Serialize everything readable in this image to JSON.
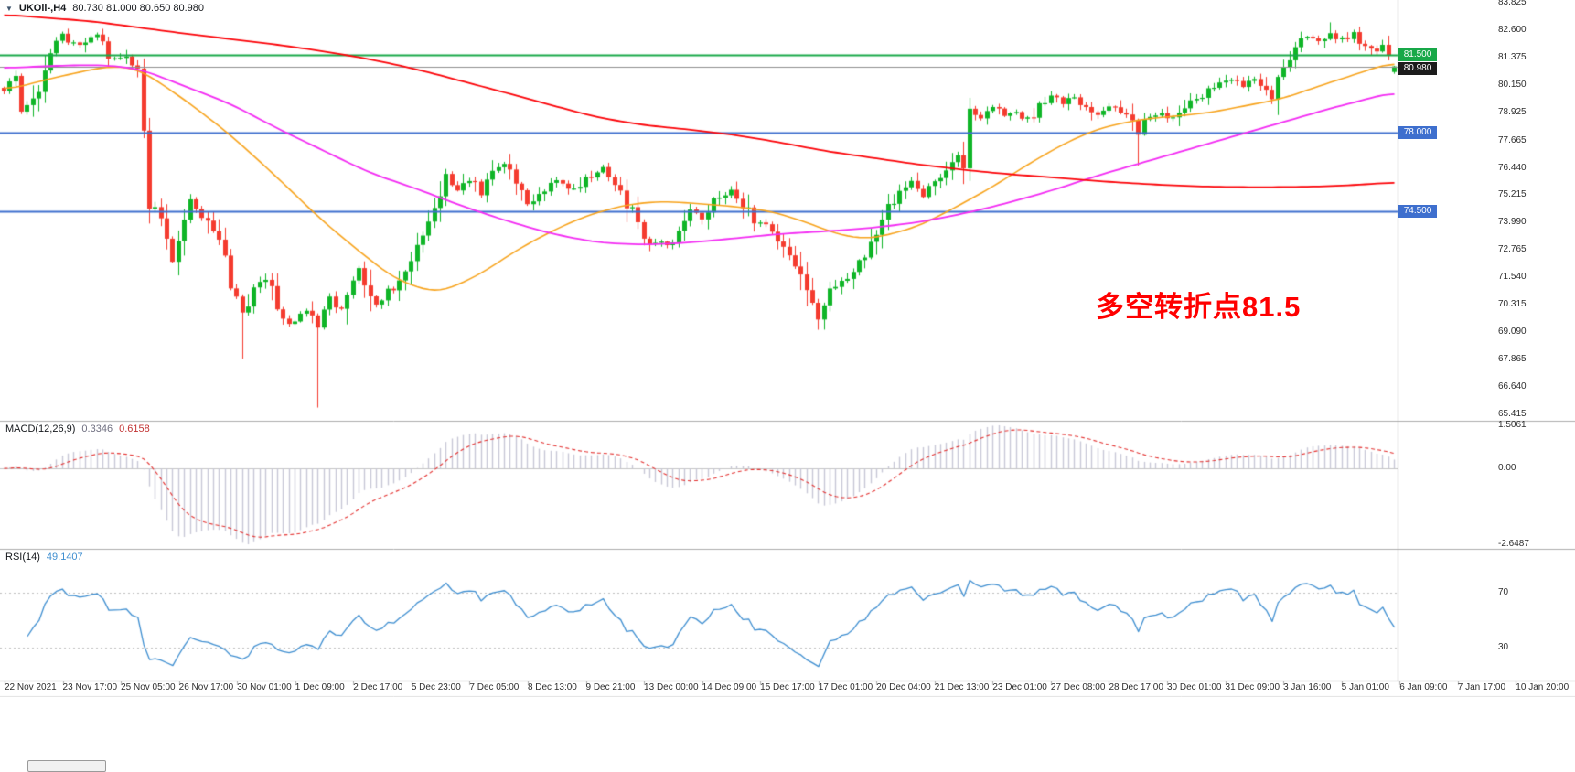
{
  "header": {
    "expander_icon": "▼",
    "symbol_period": "UKOil-,H4",
    "ohlc": "80.730 81.000 80.650 80.980"
  },
  "annotation": {
    "text": "多空转折点81.5",
    "color": "#FF0000"
  },
  "price_axis": {
    "ticks": [
      "83.825",
      "82.600",
      "81.375",
      "80.150",
      "78.925",
      "77.665",
      "76.440",
      "75.215",
      "73.990",
      "72.765",
      "71.540",
      "70.315",
      "69.090",
      "67.865",
      "66.640",
      "65.415"
    ]
  },
  "levels": [
    {
      "name": "resistance-81500",
      "price": 81.5,
      "label": "81.500",
      "color": "#18a848",
      "width": 2
    },
    {
      "name": "bid-price",
      "price": 80.98,
      "label": "80.980",
      "color": "#8f8f8f",
      "line_color": "#8f8f8f",
      "badge_color": "#1c1c1c",
      "width": 1,
      "nudge": 2
    },
    {
      "name": "support-78000",
      "price": 78.0,
      "label": "78.000",
      "color": "#3e6fce",
      "width": 2
    },
    {
      "name": "support-74500",
      "price": 74.5,
      "label": "74.500",
      "color": "#3e6fce",
      "width": 2
    }
  ],
  "macd": {
    "label": "MACD(12,26,9)",
    "value_main": "0.3346",
    "value_signal": "0.6158",
    "axis": [
      "1.5061",
      "0.00",
      "-2.6487"
    ]
  },
  "rsi": {
    "label": "RSI(14)",
    "value": "49.1407",
    "period": 14,
    "levels": [
      70,
      30
    ],
    "axis": [
      "70",
      "30"
    ]
  },
  "time_axis": {
    "labels": [
      "22 Nov 2021",
      "23 Nov 17:00",
      "25 Nov 05:00",
      "26 Nov 17:00",
      "30 Nov 01:00",
      "1 Dec 09:00",
      "2 Dec 17:00",
      "5 Dec 23:00",
      "7 Dec 05:00",
      "8 Dec 13:00",
      "9 Dec 21:00",
      "13 Dec 00:00",
      "14 Dec 09:00",
      "15 Dec 17:00",
      "17 Dec 01:00",
      "20 Dec 04:00",
      "21 Dec 13:00",
      "23 Dec 01:00",
      "27 Dec 08:00",
      "28 Dec 17:00",
      "30 Dec 01:00",
      "31 Dec 09:00",
      "3 Jan 16:00",
      "5 Jan 01:00",
      "6 Jan 09:00",
      "7 Jan 17:00",
      "10 Jan 20:00"
    ]
  },
  "chart_data": {
    "type": "candlestick",
    "symbol": "UKOil",
    "timeframe": "H4",
    "candle_count": 240,
    "price_range": [
      65.17,
      83.95
    ],
    "horizontal_levels": [
      81.5,
      78.0,
      74.5
    ],
    "bid": 80.98,
    "close_waypoints": [
      [
        0,
        79.9
      ],
      [
        2,
        80.4
      ],
      [
        3,
        79.0
      ],
      [
        5,
        79.3
      ],
      [
        8,
        81.5
      ],
      [
        10,
        82.3
      ],
      [
        13,
        81.9
      ],
      [
        16,
        82.4
      ],
      [
        18,
        81.4
      ],
      [
        21,
        81.3
      ],
      [
        23,
        80.9
      ],
      [
        24,
        78.0
      ],
      [
        25,
        74.8
      ],
      [
        27,
        74.2
      ],
      [
        29,
        72.3
      ],
      [
        32,
        74.8
      ],
      [
        34,
        74.4
      ],
      [
        37,
        72.9
      ],
      [
        40,
        70.6
      ],
      [
        41,
        70.0
      ],
      [
        43,
        70.9
      ],
      [
        45,
        71.4
      ],
      [
        47,
        70.3
      ],
      [
        49,
        69.4
      ],
      [
        51,
        70.0
      ],
      [
        53,
        69.9
      ],
      [
        54,
        69.3
      ],
      [
        56,
        70.5
      ],
      [
        58,
        70.2
      ],
      [
        61,
        71.9
      ],
      [
        63,
        71.0
      ],
      [
        64,
        70.3
      ],
      [
        66,
        70.8
      ],
      [
        68,
        71.6
      ],
      [
        70,
        72.5
      ],
      [
        72,
        73.3
      ],
      [
        74,
        74.3
      ],
      [
        76,
        76.0
      ],
      [
        78,
        75.4
      ],
      [
        80,
        75.9
      ],
      [
        82,
        75.3
      ],
      [
        84,
        76.3
      ],
      [
        86,
        76.6
      ],
      [
        88,
        75.9
      ],
      [
        90,
        74.9
      ],
      [
        92,
        75.3
      ],
      [
        95,
        75.9
      ],
      [
        98,
        75.5
      ],
      [
        100,
        76.0
      ],
      [
        103,
        76.4
      ],
      [
        105,
        75.8
      ],
      [
        107,
        74.9
      ],
      [
        109,
        73.8
      ],
      [
        111,
        73.2
      ],
      [
        114,
        73.0
      ],
      [
        116,
        73.4
      ],
      [
        118,
        74.5
      ],
      [
        120,
        74.2
      ],
      [
        122,
        74.9
      ],
      [
        125,
        75.4
      ],
      [
        127,
        74.9
      ],
      [
        129,
        74.0
      ],
      [
        131,
        73.9
      ],
      [
        133,
        73.4
      ],
      [
        135,
        72.4
      ],
      [
        137,
        71.6
      ],
      [
        139,
        70.2
      ],
      [
        140,
        69.6
      ],
      [
        142,
        70.9
      ],
      [
        144,
        71.3
      ],
      [
        146,
        71.9
      ],
      [
        148,
        72.6
      ],
      [
        150,
        73.6
      ],
      [
        152,
        74.7
      ],
      [
        154,
        75.3
      ],
      [
        156,
        75.8
      ],
      [
        158,
        75.2
      ],
      [
        160,
        75.7
      ],
      [
        162,
        76.3
      ],
      [
        164,
        76.9
      ],
      [
        165,
        76.4
      ],
      [
        166,
        78.9
      ],
      [
        168,
        78.6
      ],
      [
        170,
        79.1
      ],
      [
        172,
        78.8
      ],
      [
        174,
        79.0
      ],
      [
        176,
        78.6
      ],
      [
        178,
        79.2
      ],
      [
        180,
        79.6
      ],
      [
        182,
        79.3
      ],
      [
        184,
        79.6
      ],
      [
        186,
        79.2
      ],
      [
        188,
        78.8
      ],
      [
        190,
        79.2
      ],
      [
        192,
        78.9
      ],
      [
        194,
        78.4
      ],
      [
        195,
        78.0
      ],
      [
        197,
        78.7
      ],
      [
        199,
        78.9
      ],
      [
        201,
        78.6
      ],
      [
        203,
        79.1
      ],
      [
        205,
        79.5
      ],
      [
        207,
        79.9
      ],
      [
        209,
        80.2
      ],
      [
        211,
        80.4
      ],
      [
        213,
        80.1
      ],
      [
        215,
        80.5
      ],
      [
        217,
        79.9
      ],
      [
        218,
        79.4
      ],
      [
        220,
        80.9
      ],
      [
        222,
        81.9
      ],
      [
        224,
        82.3
      ],
      [
        226,
        82.1
      ],
      [
        228,
        82.5
      ],
      [
        230,
        82.2
      ],
      [
        232,
        82.4
      ],
      [
        234,
        81.9
      ],
      [
        236,
        81.6
      ],
      [
        237,
        81.9
      ],
      [
        238,
        81.3
      ],
      [
        239,
        80.98
      ]
    ],
    "wick_overrides": [
      {
        "i": 41,
        "low": 67.9
      },
      {
        "i": 54,
        "low": 65.72
      },
      {
        "i": 140,
        "low": 69.2
      },
      {
        "i": 195,
        "low": 76.55
      },
      {
        "i": 228,
        "high": 82.95
      }
    ],
    "last_candle": {
      "o": 80.73,
      "h": 81.0,
      "l": 80.65,
      "c": 80.98
    },
    "ma_orange_waypoints": [
      [
        0,
        79.9
      ],
      [
        9,
        80.5
      ],
      [
        18,
        81.0
      ],
      [
        23,
        80.9
      ],
      [
        31,
        79.5
      ],
      [
        39,
        77.9
      ],
      [
        47,
        76.0
      ],
      [
        55,
        74.0
      ],
      [
        63,
        72.3
      ],
      [
        67,
        71.5
      ],
      [
        72,
        71.0
      ],
      [
        75,
        70.85
      ],
      [
        82,
        71.7
      ],
      [
        88,
        72.75
      ],
      [
        94,
        73.6
      ],
      [
        100,
        74.3
      ],
      [
        107,
        74.8
      ],
      [
        113,
        74.95
      ],
      [
        119,
        74.85
      ],
      [
        126,
        74.7
      ],
      [
        132,
        74.5
      ],
      [
        138,
        74.0
      ],
      [
        144,
        73.4
      ],
      [
        149,
        73.25
      ],
      [
        157,
        73.8
      ],
      [
        163,
        74.6
      ],
      [
        170,
        75.6
      ],
      [
        176,
        76.6
      ],
      [
        182,
        77.5
      ],
      [
        188,
        78.2
      ],
      [
        195,
        78.6
      ],
      [
        201,
        78.75
      ],
      [
        207,
        78.9
      ],
      [
        213,
        79.2
      ],
      [
        220,
        79.55
      ],
      [
        226,
        80.1
      ],
      [
        232,
        80.6
      ],
      [
        239,
        81.2
      ]
    ],
    "ma_magenta_waypoints": [
      [
        0,
        80.9
      ],
      [
        8,
        81.0
      ],
      [
        16,
        81.05
      ],
      [
        23,
        80.9
      ],
      [
        31,
        80.1
      ],
      [
        39,
        79.3
      ],
      [
        47,
        78.2
      ],
      [
        55,
        77.2
      ],
      [
        63,
        76.2
      ],
      [
        71,
        75.5
      ],
      [
        78,
        74.8
      ],
      [
        86,
        74.1
      ],
      [
        94,
        73.5
      ],
      [
        102,
        73.1
      ],
      [
        110,
        73.0
      ],
      [
        118,
        73.1
      ],
      [
        126,
        73.3
      ],
      [
        134,
        73.5
      ],
      [
        141,
        73.6
      ],
      [
        149,
        73.75
      ],
      [
        157,
        74.0
      ],
      [
        165,
        74.4
      ],
      [
        173,
        74.9
      ],
      [
        181,
        75.5
      ],
      [
        188,
        76.1
      ],
      [
        196,
        76.7
      ],
      [
        204,
        77.3
      ],
      [
        212,
        77.9
      ],
      [
        220,
        78.5
      ],
      [
        228,
        79.1
      ],
      [
        234,
        79.5
      ],
      [
        239,
        79.85
      ]
    ],
    "ma_red_waypoints": [
      [
        0,
        83.3
      ],
      [
        15,
        83.0
      ],
      [
        31,
        82.45
      ],
      [
        47,
        81.95
      ],
      [
        55,
        81.65
      ],
      [
        63,
        81.3
      ],
      [
        71,
        80.85
      ],
      [
        79,
        80.3
      ],
      [
        87,
        79.75
      ],
      [
        94,
        79.25
      ],
      [
        102,
        78.7
      ],
      [
        110,
        78.35
      ],
      [
        118,
        78.15
      ],
      [
        126,
        77.9
      ],
      [
        134,
        77.55
      ],
      [
        141,
        77.2
      ],
      [
        149,
        76.9
      ],
      [
        157,
        76.6
      ],
      [
        165,
        76.35
      ],
      [
        173,
        76.15
      ],
      [
        181,
        76.0
      ],
      [
        188,
        75.85
      ],
      [
        196,
        75.72
      ],
      [
        204,
        75.62
      ],
      [
        212,
        75.58
      ],
      [
        220,
        75.58
      ],
      [
        228,
        75.62
      ],
      [
        234,
        75.7
      ],
      [
        239,
        75.8
      ]
    ],
    "macd_axis": {
      "max": 1.5061,
      "min": -2.6487
    },
    "colors": {
      "up": "#0fb527",
      "down": "#f43b2f",
      "ma_red": "#fb0207",
      "ma_magenta": "#f32bf3",
      "ma_orange": "#f7a31c",
      "macd_hist": "#c7c7d6",
      "macd_signal": "#e3302f",
      "rsi_line": "#3e8ed0",
      "separator": "#adadad",
      "dotted": "#bdbdbd",
      "zero_line": "#c4c4c4"
    }
  }
}
